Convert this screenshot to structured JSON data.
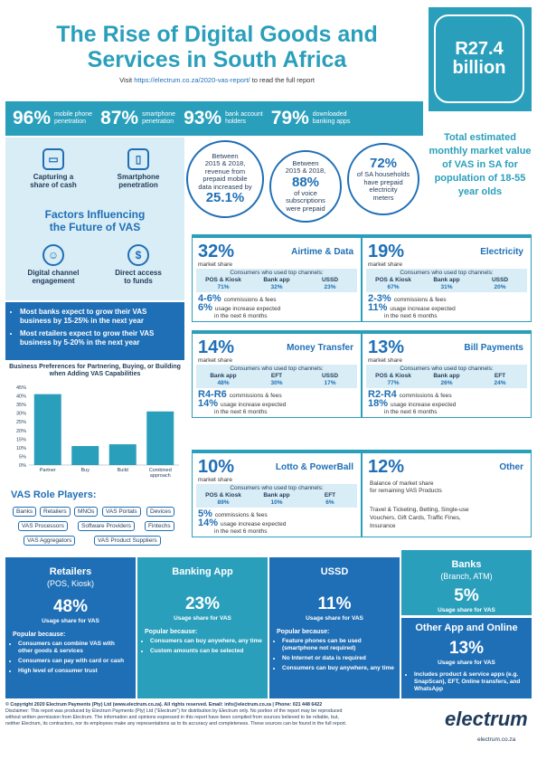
{
  "header": {
    "title_line1": "The Rise of Digital Goods and",
    "title_line2": "Services in South Africa",
    "visit_prefix": "Visit ",
    "visit_url": "https://electrum.co.za/2020-vas-report/",
    "visit_suffix": " to read the full report"
  },
  "highlight": {
    "value_line1": "R27.4",
    "value_line2": "billion",
    "desc": "Total estimated monthly market value of VAS in SA for population of 18-55 year olds"
  },
  "stats": [
    {
      "n": "96%",
      "l1": "mobile phone",
      "l2": "penetration"
    },
    {
      "n": "87%",
      "l1": "smartphone",
      "l2": "penetration"
    },
    {
      "n": "93%",
      "l1": "bank account",
      "l2": "holders"
    },
    {
      "n": "79%",
      "l1": "downloaded",
      "l2": "banking apps"
    }
  ],
  "factors": {
    "title_line1": "Factors Influencing",
    "title_line2": "the Future of VAS",
    "items": [
      {
        "l1": "Capturing a",
        "l2": "share of cash",
        "icon": "wallet-icon"
      },
      {
        "l1": "Smartphone",
        "l2": "penetration",
        "icon": "smartphone-icon"
      },
      {
        "l1": "Digital channel",
        "l2": "engagement",
        "icon": "person-icon"
      },
      {
        "l1": "Direct access",
        "l2": "to funds",
        "icon": "piggy-bank-icon"
      }
    ]
  },
  "circles": [
    {
      "pre1": "Between",
      "pre2": "2015 & 2018,",
      "pre3": "revenue from",
      "pre4": "prepaid mobile",
      "pre5": "data increased by",
      "val": "25.1%"
    },
    {
      "pre1": "Between",
      "pre2": "2015 & 2018,",
      "val": "88%",
      "post1": "of voice",
      "post2": "subscriptions",
      "post3": "were prepaid"
    },
    {
      "val": "72%",
      "post1": "of SA households",
      "post2": "have prepaid",
      "post3": "electricity",
      "post4": "meters"
    }
  ],
  "expectations": [
    "Most banks expect to grow their VAS business by 15-25% in the next year",
    "Most retailers expect to grow their VAS business by 5-20% in the next year"
  ],
  "chart_data": {
    "type": "bar",
    "title": "Business Preferences for Partnering, Buying, or Building when Adding VAS Capabilities",
    "categories": [
      "Partner",
      "Buy",
      "Build",
      "Combined approach"
    ],
    "values": [
      41,
      11,
      12,
      31
    ],
    "ylim": [
      0,
      45
    ],
    "yticks": [
      "0%",
      "5%",
      "10%",
      "15%",
      "20%",
      "25%",
      "30%",
      "35%",
      "40%",
      "45%"
    ],
    "color": "#2a9fbc"
  },
  "role_players": {
    "title": "VAS Role Players:",
    "tags": [
      "Banks",
      "Retailers",
      "MNOs",
      "VAS Portals",
      "Devices",
      "VAS Processors",
      "Software Providers",
      "Fintechs",
      "VAS Aggregators",
      "VAS Product Suppliers"
    ]
  },
  "cards": [
    {
      "pct": "32%",
      "ms": "market share",
      "name": "Airtime & Data",
      "hd": "Consumers who used top channels:",
      "ch": [
        {
          "n": "POS & Kiosk",
          "v": "71%"
        },
        {
          "n": "Bank app",
          "v": "32%"
        },
        {
          "n": "USSD",
          "v": "23%"
        }
      ],
      "c1": "4-6%",
      "c1t": "commissions & fees",
      "c2": "6%",
      "c2t": "usage increase expected",
      "c3t": "in the next 6 months"
    },
    {
      "pct": "19%",
      "ms": "market share",
      "name": "Electricity",
      "hd": "Consumers who used top channels:",
      "ch": [
        {
          "n": "POS & Kiosk",
          "v": "67%"
        },
        {
          "n": "Bank app",
          "v": "31%"
        },
        {
          "n": "USSD",
          "v": "20%"
        }
      ],
      "c1": "2-3%",
      "c1t": "commissions & fees",
      "c2": "11%",
      "c2t": "usage increase expected",
      "c3t": "in the next 6 months"
    },
    {
      "pct": "14%",
      "ms": "market share",
      "name": "Money Transfer",
      "hd": "Consumers who used top channels:",
      "ch": [
        {
          "n": "Bank app",
          "v": "48%"
        },
        {
          "n": "EFT",
          "v": "30%"
        },
        {
          "n": "USSD",
          "v": "17%"
        }
      ],
      "c1": "R4-R6",
      "c1t": "commissions & fees",
      "c2": "14%",
      "c2t": "usage increase expected",
      "c3t": "in the next 6 months"
    },
    {
      "pct": "13%",
      "ms": "market share",
      "name": "Bill Payments",
      "hd": "Consumers who used top channels:",
      "ch": [
        {
          "n": "POS & Kiosk",
          "v": "77%"
        },
        {
          "n": "Bank app",
          "v": "26%"
        },
        {
          "n": "EFT",
          "v": "24%"
        }
      ],
      "c1": "R2-R4",
      "c1t": "commissions & fees",
      "c2": "18%",
      "c2t": "usage increase expected",
      "c3t": "in the next 6 months"
    },
    {
      "pct": "10%",
      "ms": "market share",
      "name": "Lotto & PowerBall",
      "hd": "Consumers who used top channels:",
      "ch": [
        {
          "n": "POS & Kiosk",
          "v": "89%"
        },
        {
          "n": "Bank app",
          "v": "10%"
        },
        {
          "n": "EFT",
          "v": "6%"
        }
      ],
      "c1": "5%",
      "c1t": "commissions & fees",
      "c2": "14%",
      "c2t": "usage increase expected",
      "c3t": "in the next 6 months"
    }
  ],
  "other": {
    "pct": "12%",
    "name": "Other",
    "d1": "Balance of market share",
    "d2": "for remaining VAS Products",
    "l1": "Travel & Ticketing, Betting, Single-use",
    "l2": "Vouchers, Gift Cards, Traffic Fines,",
    "l3": "Insurance"
  },
  "bottom": [
    {
      "h1": "Retailers",
      "h2": "(POS, Kiosk)",
      "pct": "48%",
      "us": "Usage share for VAS",
      "pb": "Popular because:",
      "items": [
        "Consumers can combine VAS with other goods & services",
        "Consumers can pay with card or cash",
        "High level of consumer trust"
      ]
    },
    {
      "h1": "Banking App",
      "pct": "23%",
      "us": "Usage share for VAS",
      "pb": "Popular because:",
      "items": [
        "Consumers can buy anywhere, any time",
        "Custom amounts can be selected"
      ]
    },
    {
      "h1": "USSD",
      "pct": "11%",
      "us": "Usage share for VAS",
      "pb": "Popular because:",
      "items": [
        "Feature phones can be used (smartphone not required)",
        "No Internet or data is required",
        "Consumers can buy anywhere, any time"
      ]
    },
    {
      "h1": "Banks",
      "h2": "(Branch, ATM)",
      "pct": "5%",
      "us": "Usage share for VAS"
    },
    {
      "h1": "Other App and Online",
      "pct": "13%",
      "us": "Usage share for VAS",
      "items": [
        "Includes product & service apps (e.g. SnapScan), EFT, Online transfers, and WhatsApp"
      ]
    }
  ],
  "footer": {
    "l1": "© Copyright 2020 Electrum Payments (Pty) Ltd (www.electrum.co.za). All rights reserved. Email: info@electrum.co.za | Phone: 021 448 6422",
    "l2": "Disclaimer: This report was produced by Electrum Payments (Pty) Ltd (\"Electrum\") for distribution by Electrum only. No portion of the report may be reproduced",
    "l3": "without written permission from Electrum. The information and opinions expressed in this report have been compiled from sources believed to be reliable, but,",
    "l4": "neither Electrum, its contractors, nor its employees make any representations as to its accuracy and completeness. These sources can be found in the full report."
  },
  "logo": {
    "name": "electrum",
    "url": "electrum.co.za"
  }
}
